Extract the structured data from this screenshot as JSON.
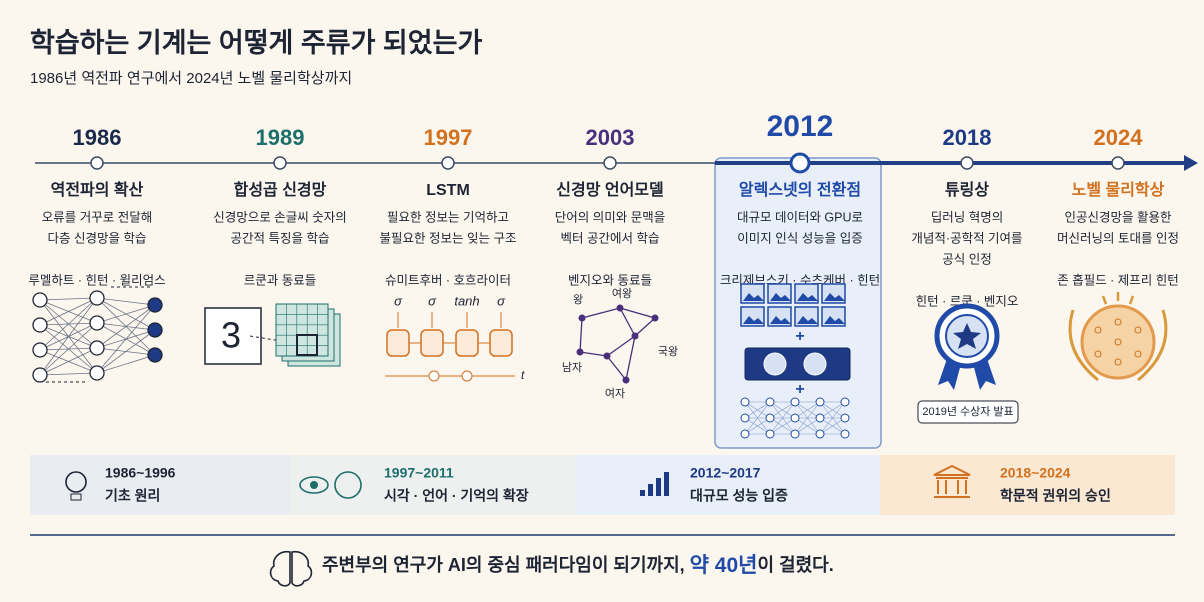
{
  "header": {
    "title": "학습하는 기계는 어떻게 주류가 되었는가",
    "subtitle": "1986년 역전파 연구에서 2024년 노벨 물리학상까지"
  },
  "timeline": {
    "events": [
      {
        "year": "1986",
        "title": "역전파의 확산",
        "description": [
          "오류를 거꾸로 전달해",
          "다층 신경망을 학습"
        ],
        "people": "루멜하트 · 힌턴 · 윌리엄스"
      },
      {
        "year": "1989",
        "title": "합성곱 신경망",
        "description": [
          "신경망으로 손글씨 숫자의",
          "공간적 특징을 학습"
        ],
        "people": "르쿤과 동료들",
        "figure_labels": [
          "3"
        ]
      },
      {
        "year": "1997",
        "title": "LSTM",
        "description": [
          "필요한 정보는 기억하고",
          "불필요한 정보는 잊는 구조"
        ],
        "people": "슈미트후버 · 호흐라이터",
        "figure_labels": [
          "σ",
          "σ",
          "tanh",
          "σ",
          "t"
        ]
      },
      {
        "year": "2003",
        "title": "신경망 언어모델",
        "description": [
          "단어의 의미와 문맥을",
          "벡터 공간에서 학습"
        ],
        "people": "벤지오와 동료들",
        "figure_labels": [
          "왕",
          "여왕",
          "국왕",
          "남자",
          "여자"
        ]
      },
      {
        "year": "2012",
        "title": "알렉스넷의 전환점",
        "description": [
          "대규모 데이터와 GPU로",
          "이미지 인식 성능을 입증"
        ],
        "people": "크리제브스키 · 수츠케버 · 힌턴"
      },
      {
        "year": "2018",
        "title": "튜링상",
        "description": [
          "딥러닝 혁명의",
          "개념적·공학적 기여를",
          "공식 인정"
        ],
        "people": "힌턴 · 르쿤 · 벤지오",
        "badge": "2019년 수상자 발표"
      },
      {
        "year": "2024",
        "title": "노벨 물리학상",
        "description": [
          "인공신경망을 활용한",
          "머신러닝의 토대를 인정"
        ],
        "people": "존 홉필드 · 제프리 힌턴"
      }
    ]
  },
  "eras": [
    {
      "range": "1986~1996",
      "label": "기초 원리"
    },
    {
      "range": "1997~2011",
      "label": "시각 · 언어 · 기억의 확장"
    },
    {
      "range": "2012~2017",
      "label": "대규모 성능 입증"
    },
    {
      "range": "2018~2024",
      "label": "학문적 권위의 승인"
    }
  ],
  "footer": {
    "text": "주변부의 연구가 AI의 중심 패러다임이 되기까지, ",
    "emphasis": "약 40년",
    "ending": "이 걸렸다."
  }
}
